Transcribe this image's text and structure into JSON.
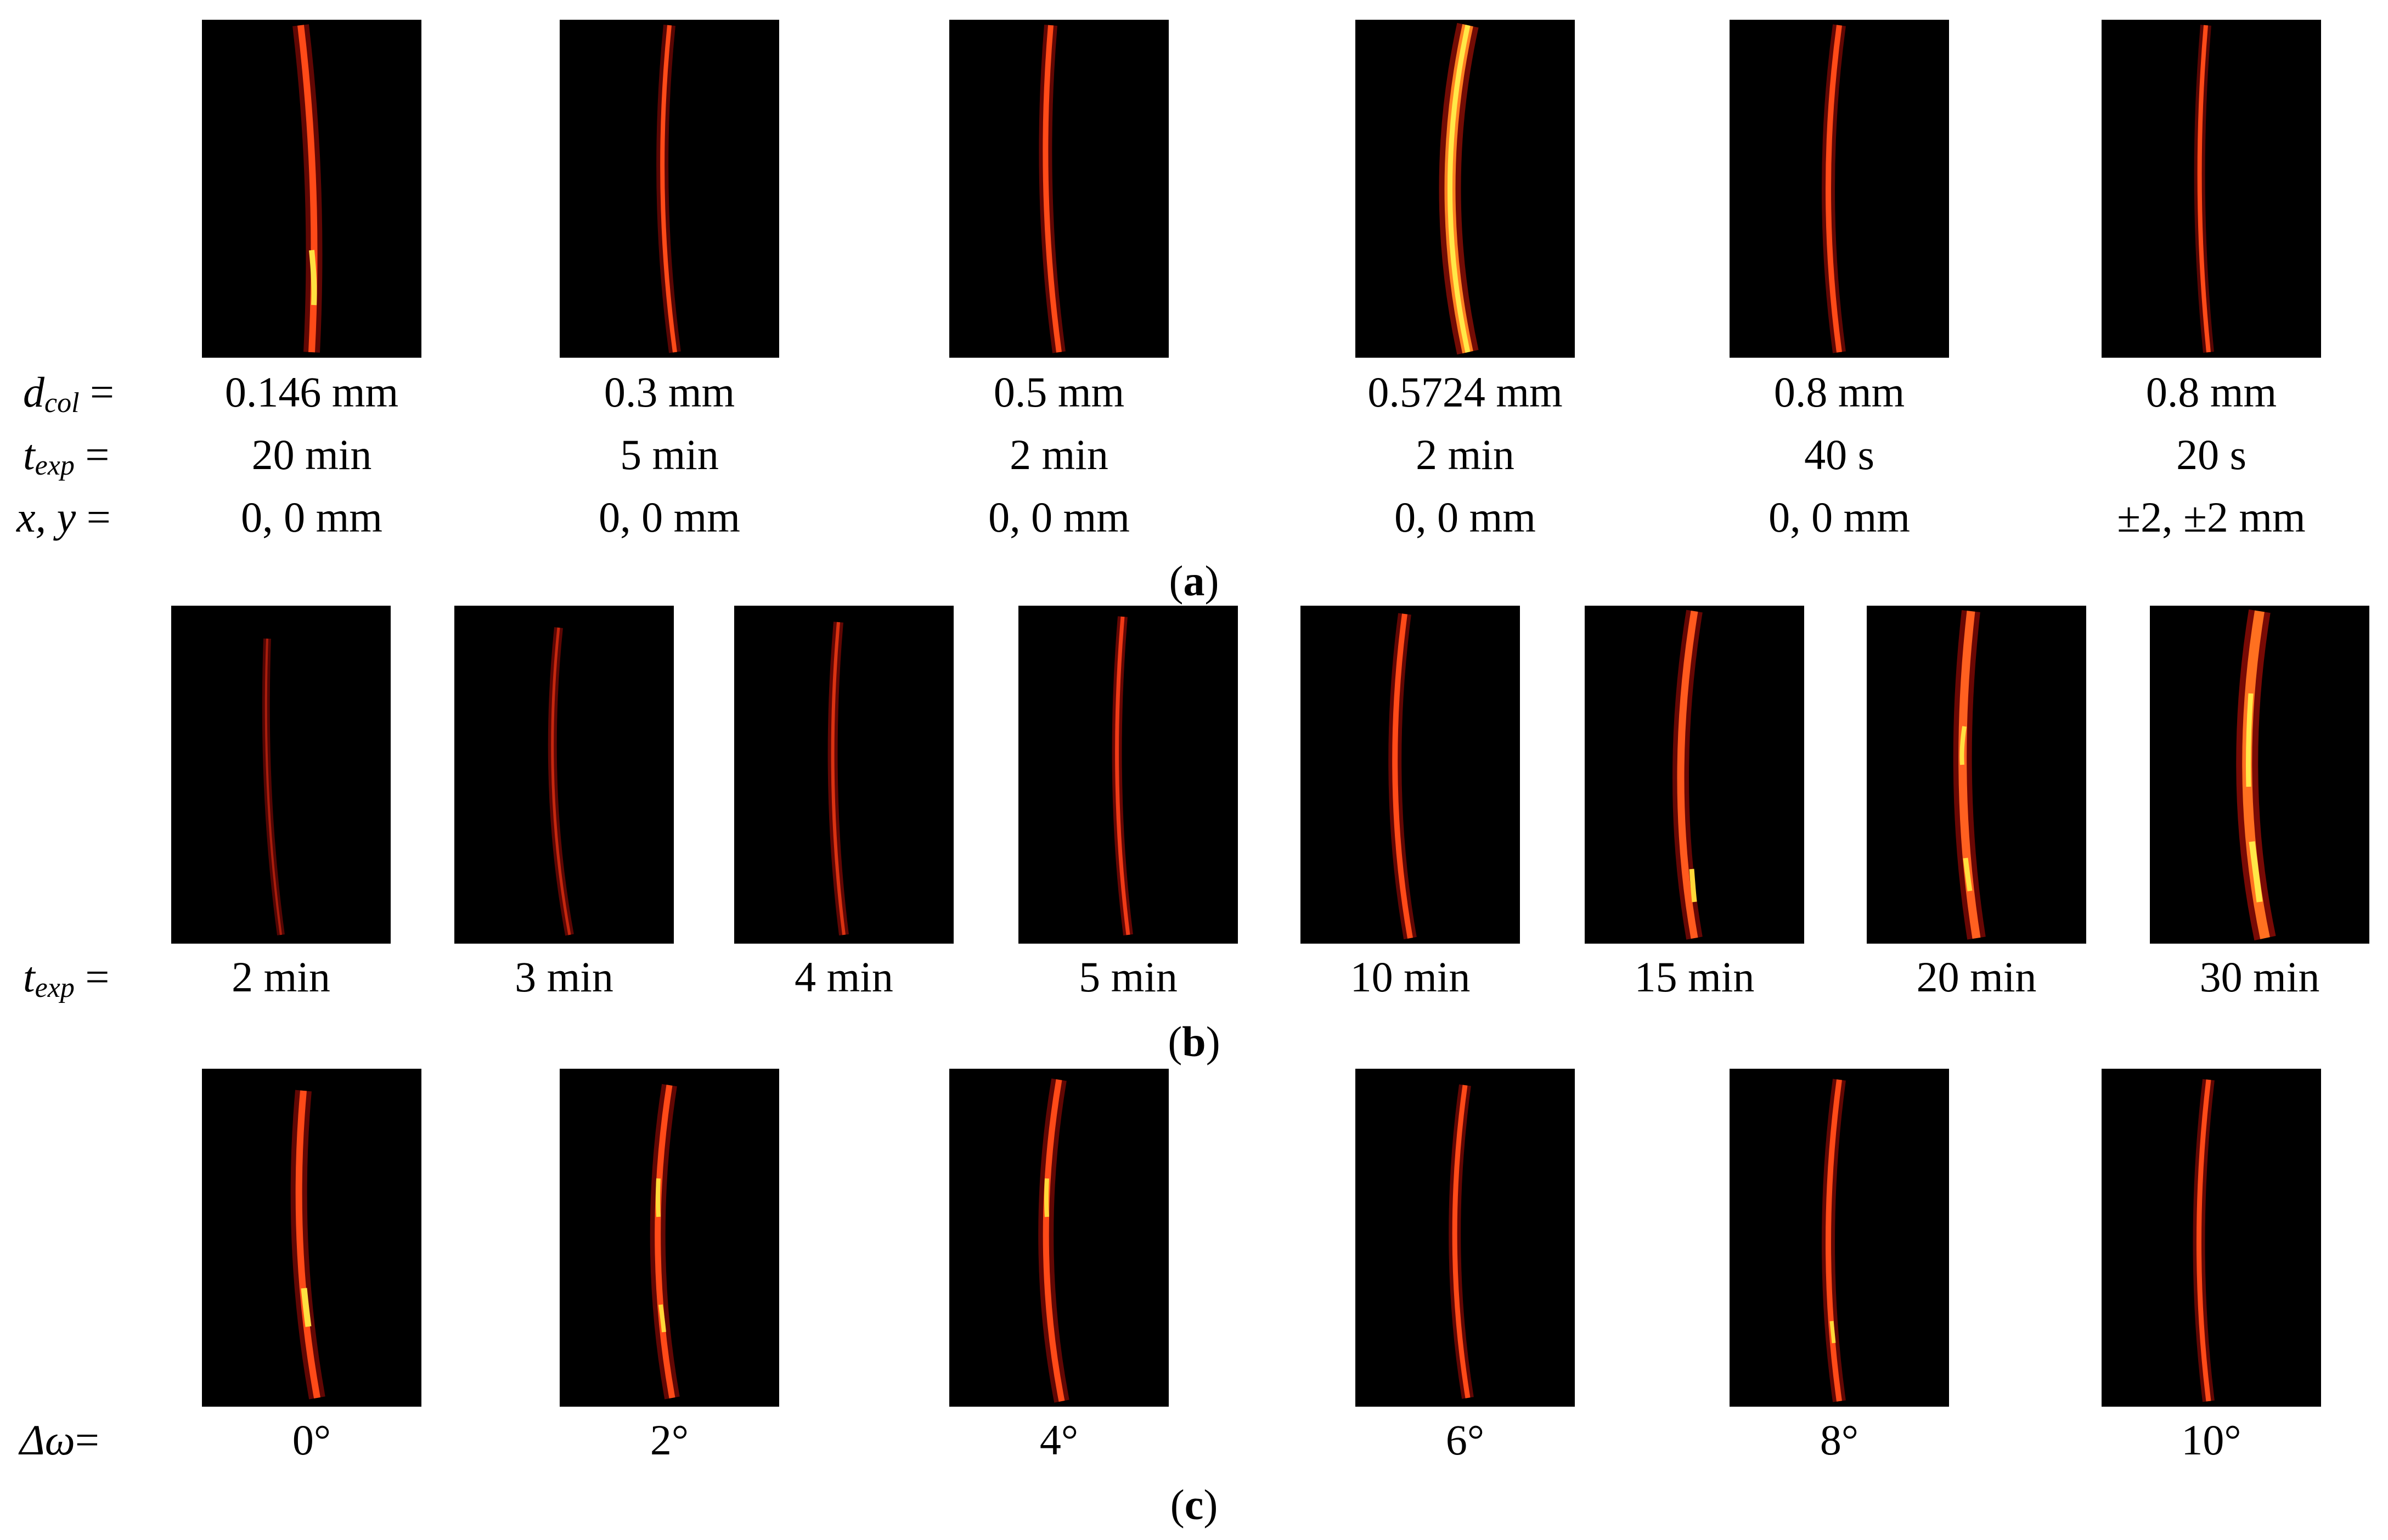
{
  "panel_a": {
    "caption_letter": "a",
    "row_labels": {
      "dcol": {
        "main": "d",
        "sub": "col",
        "eq": " ="
      },
      "texp": {
        "main": "t",
        "sub": "exp",
        "eq": " ="
      },
      "xy": {
        "main": "x, y",
        "eq": " ="
      }
    },
    "columns": [
      {
        "dcol": "0.146 mm",
        "texp": "20 min",
        "xy": "0, 0 mm"
      },
      {
        "dcol": "0.3 mm",
        "texp": "5 min",
        "xy": "0, 0 mm"
      },
      {
        "dcol": "0.5 mm",
        "texp": "2 min",
        "xy": "0, 0 mm"
      },
      {
        "dcol": "0.5724 mm",
        "texp": "2 min",
        "xy": "0, 0 mm"
      },
      {
        "dcol": "0.8 mm",
        "texp": "40 s",
        "xy": "0, 0 mm"
      },
      {
        "dcol": "0.8 mm",
        "texp": "20 s",
        "xy": "±2, ±2 mm"
      }
    ]
  },
  "panel_b": {
    "caption_letter": "b",
    "row_label": {
      "main": "t",
      "sub": "exp",
      "eq": " ="
    },
    "columns": [
      "2 min",
      "3 min",
      "4 min",
      "5 min",
      "10 min",
      "15 min",
      "20 min",
      "30 min"
    ]
  },
  "panel_c": {
    "caption_letter": "c",
    "row_label": {
      "main": "Δω",
      "eq": "="
    },
    "columns": [
      "0°",
      "2°",
      "4°",
      "6°",
      "8°",
      "10°"
    ]
  },
  "colors": {
    "background": "#000000",
    "line_outer": "#c0100c",
    "line_inner": "#ff5a1e",
    "line_hot": "#ffe040"
  }
}
